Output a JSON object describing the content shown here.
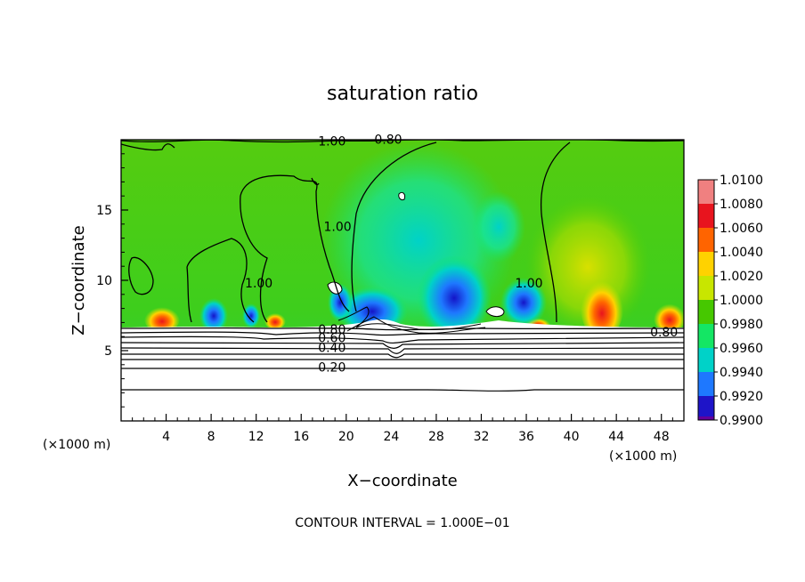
{
  "chart_data": {
    "type": "heatmap",
    "title": "saturation ratio",
    "xlabel": "X−coordinate",
    "ylabel": "Z−coordinate",
    "x_unit_left": "(×1000 m)",
    "x_unit_right": "(×1000 m)",
    "xlim": [
      0,
      50
    ],
    "ylim": [
      0,
      20
    ],
    "x_ticks": [
      4,
      8,
      12,
      16,
      20,
      24,
      28,
      32,
      36,
      40,
      44,
      48
    ],
    "y_ticks": [
      5,
      10,
      15
    ],
    "colorbar": {
      "levels": [
        "1.0100",
        "1.0080",
        "1.0060",
        "1.0040",
        "1.0020",
        "1.0000",
        "0.9980",
        "0.9960",
        "0.9940",
        "0.9920",
        "0.9900"
      ],
      "colors": [
        "#f08080",
        "#e8141e",
        "#ff6400",
        "#ffd200",
        "#c8e600",
        "#46c800",
        "#14e664",
        "#00d2c8",
        "#1e78ff",
        "#1e14c8",
        "#64009b"
      ]
    },
    "contour_labels": [
      {
        "text": "1.00",
        "x": 17.5,
        "y": 19.6
      },
      {
        "text": "0.80",
        "x": 22.5,
        "y": 19.7
      },
      {
        "text": "1.00",
        "x": 18.0,
        "y": 13.5
      },
      {
        "text": "1.00",
        "x": 11.0,
        "y": 9.5
      },
      {
        "text": "1.00",
        "x": 35.0,
        "y": 9.5
      },
      {
        "text": "0.80",
        "x": 47.0,
        "y": 6.0
      },
      {
        "text": "0.80",
        "x": 17.5,
        "y": 6.2
      },
      {
        "text": "0.60",
        "x": 17.5,
        "y": 5.6
      },
      {
        "text": "0.40",
        "x": 17.5,
        "y": 4.9
      },
      {
        "text": "0.20",
        "x": 17.5,
        "y": 3.5
      }
    ],
    "footer": "CONTOUR INTERVAL =  1.000E−01"
  }
}
